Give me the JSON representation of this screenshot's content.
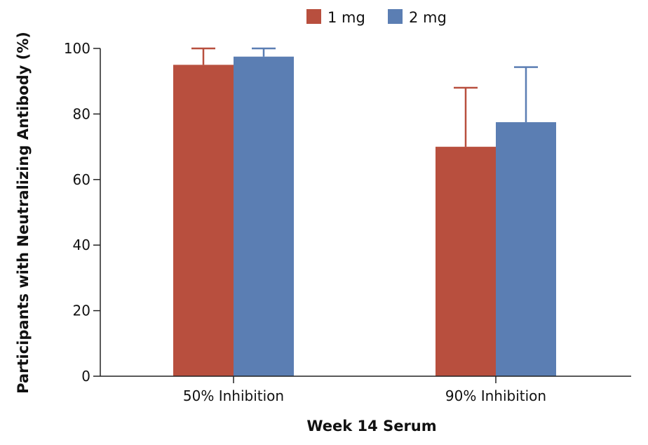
{
  "chart_data": {
    "type": "bar",
    "title": "",
    "xlabel": "Week 14 Serum",
    "ylabel": "Participants with Neutralizing Antibody (%)",
    "ylim": [
      0,
      100
    ],
    "yticks": [
      0,
      20,
      40,
      60,
      80,
      100
    ],
    "categories": [
      "50% Inhibition",
      "90% Inhibition"
    ],
    "series": [
      {
        "name": "1 mg",
        "color": "#b84f3e",
        "values": [
          95,
          70
        ],
        "error_upper": [
          100,
          88
        ]
      },
      {
        "name": "2 mg",
        "color": "#5b7eb3",
        "values": [
          97.5,
          77.5
        ],
        "error_upper": [
          100,
          94.3
        ]
      }
    ],
    "legend": "top-center",
    "grid": false
  }
}
